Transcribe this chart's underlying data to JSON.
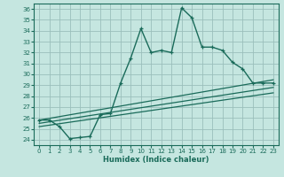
{
  "title": "",
  "xlabel": "Humidex (Indice chaleur)",
  "ylabel": "",
  "background_color": "#c5e6e0",
  "line_color": "#1a6b5a",
  "xlim": [
    -0.5,
    23.5
  ],
  "ylim": [
    23.5,
    36.5
  ],
  "yticks": [
    24,
    25,
    26,
    27,
    28,
    29,
    30,
    31,
    32,
    33,
    34,
    35,
    36
  ],
  "xticks": [
    0,
    1,
    2,
    3,
    4,
    5,
    6,
    7,
    8,
    9,
    10,
    11,
    12,
    13,
    14,
    15,
    16,
    17,
    18,
    19,
    20,
    21,
    22,
    23
  ],
  "series1_x": [
    0,
    1,
    2,
    3,
    4,
    5,
    6,
    7,
    8,
    9,
    10,
    11,
    12,
    13,
    14,
    15,
    16,
    17,
    18,
    19,
    20,
    21,
    22,
    23
  ],
  "series1_y": [
    25.8,
    25.8,
    25.2,
    24.1,
    24.2,
    24.3,
    26.3,
    26.4,
    29.2,
    31.5,
    34.2,
    32.0,
    32.2,
    32.0,
    36.1,
    35.2,
    32.5,
    32.5,
    32.2,
    31.1,
    30.5,
    29.2,
    29.2,
    29.2
  ],
  "series2_x": [
    0,
    23
  ],
  "series2_y": [
    25.8,
    29.5
  ],
  "series3_x": [
    0,
    23
  ],
  "series3_y": [
    25.5,
    28.8
  ],
  "series4_x": [
    0,
    23
  ],
  "series4_y": [
    25.2,
    28.3
  ],
  "grid_color": "#9bbfbb",
  "font_color": "#1a6b5a",
  "tick_fontsize": 5,
  "xlabel_fontsize": 6
}
